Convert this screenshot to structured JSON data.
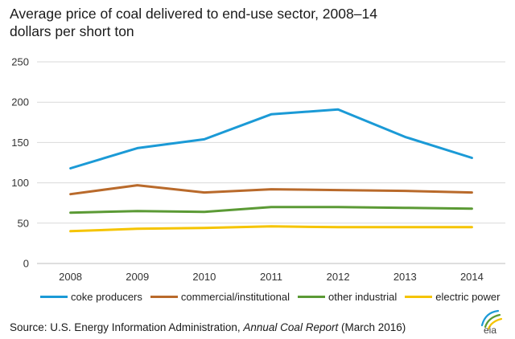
{
  "title_line1": "Average price of coal delivered to end-use sector, 2008–14",
  "title_line2": "dollars per short ton",
  "source_prefix": "Source: U.S. Energy Information Administration, ",
  "source_italic": "Annual Coal Report",
  "source_suffix": " (March 2016)",
  "logo_text": "eia",
  "chart_data": {
    "type": "line",
    "title": "Average price of coal delivered to end-use sector, 2008–14",
    "subtitle": "dollars per short ton",
    "xlabel": "",
    "ylabel": "",
    "ylim": [
      0,
      250
    ],
    "yticks": [
      "0",
      "50",
      "100",
      "150",
      "200",
      "250"
    ],
    "grid": true,
    "legend_position": "bottom",
    "x": [
      "2008",
      "2009",
      "2010",
      "2011",
      "2012",
      "2013",
      "2014"
    ],
    "series": [
      {
        "name": "coke producers",
        "color": "#1b9ad6",
        "values": [
          118,
          143,
          154,
          185,
          191,
          157,
          131
        ]
      },
      {
        "name": "commercial/institutional",
        "color": "#b96a2b",
        "values": [
          86,
          97,
          88,
          92,
          91,
          90,
          88
        ]
      },
      {
        "name": "other industrial",
        "color": "#5b9a35",
        "values": [
          63,
          65,
          64,
          70,
          70,
          69,
          68
        ]
      },
      {
        "name": "electric power",
        "color": "#f5c400",
        "values": [
          40,
          43,
          44,
          46,
          45,
          45,
          45
        ]
      }
    ]
  }
}
